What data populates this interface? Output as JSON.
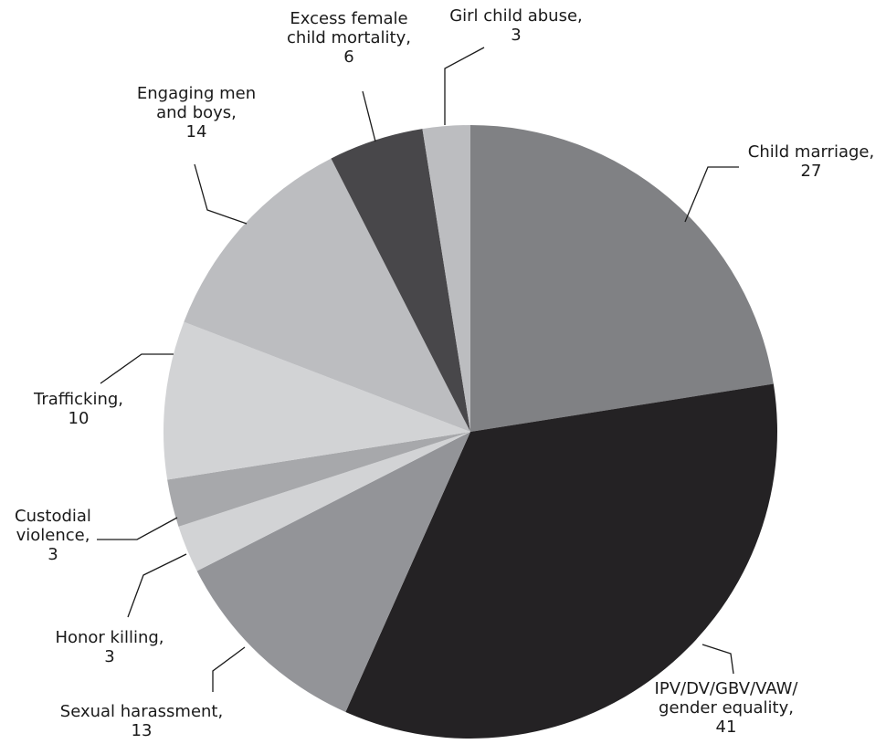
{
  "chart_data": {
    "type": "pie",
    "start": "12 o'clock",
    "direction": "clockwise",
    "slices": [
      {
        "key": "child-marriage",
        "lines": [
          "Child marriage,",
          "27"
        ],
        "label": "Child marriage",
        "value": 27,
        "color": "#808184"
      },
      {
        "key": "ipv-dv-gbv-vaw",
        "lines": [
          "IPV/DV/GBV/VAW/",
          "gender equality,",
          "41"
        ],
        "label": "IPV/DV/GBV/VAW/ gender equality",
        "value": 41,
        "color": "#242224"
      },
      {
        "key": "sexual-harassment",
        "lines": [
          "Sexual harassment,",
          "13"
        ],
        "label": "Sexual harassment",
        "value": 13,
        "color": "#939498"
      },
      {
        "key": "honor-killing",
        "lines": [
          "Honor killing,",
          "3"
        ],
        "label": "Honor killing",
        "value": 3,
        "color": "#d2d3d5"
      },
      {
        "key": "custodial-violence",
        "lines": [
          "Custodial",
          "violence,",
          "3"
        ],
        "label": "Custodial violence",
        "value": 3,
        "color": "#a7a8ab"
      },
      {
        "key": "trafficking",
        "lines": [
          "Trafficking,",
          "10"
        ],
        "label": "Trafficking",
        "value": 10,
        "color": "#d2d3d5"
      },
      {
        "key": "engaging-men-boys",
        "lines": [
          "Engaging men",
          "and boys,",
          "14"
        ],
        "label": "Engaging men and boys",
        "value": 14,
        "color": "#bcbdc0"
      },
      {
        "key": "excess-female-child-mortality",
        "lines": [
          "Excess female",
          "child mortality,",
          "6"
        ],
        "label": "Excess female child mortality",
        "value": 6,
        "color": "#48474a"
      },
      {
        "key": "girl-child-abuse",
        "lines": [
          "Girl child abuse,",
          "3"
        ],
        "label": "Girl child abuse",
        "value": 3,
        "color": "#bcbdc0"
      }
    ]
  }
}
